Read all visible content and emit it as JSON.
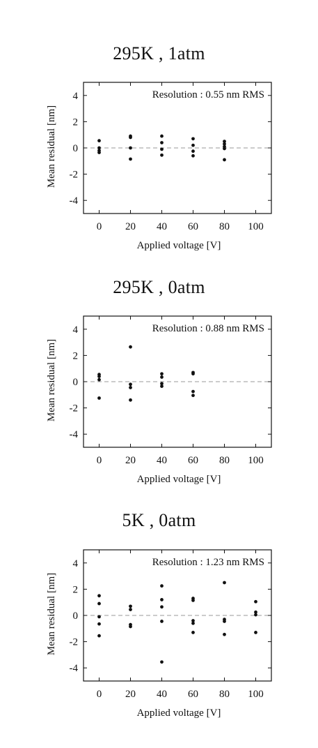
{
  "chart_data": [
    {
      "type": "scatter",
      "title": "295K , 1atm",
      "annotation": "Resolution : 0.55 nm RMS",
      "xlabel": "Applied voltage [V]",
      "ylabel": "Mean residual [nm]",
      "xticks": [
        0,
        20,
        40,
        60,
        80,
        100
      ],
      "yticks": [
        4,
        2,
        0,
        -2,
        -4
      ],
      "xlim": [
        -10,
        110
      ],
      "ylim": [
        -5,
        5
      ],
      "zero_line": "dashed",
      "points": [
        {
          "x": 0,
          "y": 0.55
        },
        {
          "x": 0,
          "y": 0.0
        },
        {
          "x": 0,
          "y": -0.2
        },
        {
          "x": 0,
          "y": -0.35
        },
        {
          "x": 20,
          "y": 0.9
        },
        {
          "x": 20,
          "y": 0.8
        },
        {
          "x": 20,
          "y": 0.0
        },
        {
          "x": 20,
          "y": -0.85
        },
        {
          "x": 40,
          "y": 0.9
        },
        {
          "x": 40,
          "y": 0.4
        },
        {
          "x": 40,
          "y": -0.1
        },
        {
          "x": 40,
          "y": -0.55
        },
        {
          "x": 60,
          "y": 0.7
        },
        {
          "x": 60,
          "y": 0.2
        },
        {
          "x": 60,
          "y": -0.25
        },
        {
          "x": 60,
          "y": -0.6
        },
        {
          "x": 80,
          "y": 0.5
        },
        {
          "x": 80,
          "y": 0.3
        },
        {
          "x": 80,
          "y": 0.1
        },
        {
          "x": 80,
          "y": -0.05
        },
        {
          "x": 80,
          "y": -0.9
        }
      ]
    },
    {
      "type": "scatter",
      "title": "295K , 0atm",
      "annotation": "Resolution : 0.88 nm RMS",
      "xlabel": "Applied voltage [V]",
      "ylabel": "Mean residual [nm]",
      "xticks": [
        0,
        20,
        40,
        60,
        80,
        100
      ],
      "yticks": [
        4,
        2,
        0,
        -2,
        -4
      ],
      "xlim": [
        -10,
        110
      ],
      "ylim": [
        -5,
        5
      ],
      "zero_line": "dashed",
      "points": [
        {
          "x": 0,
          "y": 0.55
        },
        {
          "x": 0,
          "y": 0.4
        },
        {
          "x": 0,
          "y": 0.15
        },
        {
          "x": 0,
          "y": -1.25
        },
        {
          "x": 20,
          "y": 2.65
        },
        {
          "x": 20,
          "y": -0.2
        },
        {
          "x": 20,
          "y": -0.45
        },
        {
          "x": 20,
          "y": -1.4
        },
        {
          "x": 40,
          "y": 0.6
        },
        {
          "x": 40,
          "y": 0.35
        },
        {
          "x": 40,
          "y": -0.15
        },
        {
          "x": 40,
          "y": -0.35
        },
        {
          "x": 60,
          "y": 0.7
        },
        {
          "x": 60,
          "y": 0.6
        },
        {
          "x": 60,
          "y": -0.75
        },
        {
          "x": 60,
          "y": -1.05
        }
      ]
    },
    {
      "type": "scatter",
      "title": "5K , 0atm",
      "annotation": "Resolution : 1.23 nm RMS",
      "xlabel": "Applied voltage [V]",
      "ylabel": "Mean residual [nm]",
      "xticks": [
        0,
        20,
        40,
        60,
        80,
        100
      ],
      "yticks": [
        4,
        2,
        0,
        -2,
        -4
      ],
      "xlim": [
        -10,
        110
      ],
      "ylim": [
        -5,
        5
      ],
      "zero_line": "dashed",
      "points": [
        {
          "x": 0,
          "y": 1.5
        },
        {
          "x": 0,
          "y": 0.9
        },
        {
          "x": 0,
          "y": -0.1
        },
        {
          "x": 0,
          "y": -0.65
        },
        {
          "x": 0,
          "y": -1.55
        },
        {
          "x": 20,
          "y": 0.7
        },
        {
          "x": 20,
          "y": 0.45
        },
        {
          "x": 20,
          "y": -0.7
        },
        {
          "x": 20,
          "y": -0.85
        },
        {
          "x": 40,
          "y": 2.25
        },
        {
          "x": 40,
          "y": 1.2
        },
        {
          "x": 40,
          "y": 0.65
        },
        {
          "x": 40,
          "y": -0.45
        },
        {
          "x": 40,
          "y": -3.55
        },
        {
          "x": 60,
          "y": 1.3
        },
        {
          "x": 60,
          "y": 1.15
        },
        {
          "x": 60,
          "y": -0.4
        },
        {
          "x": 60,
          "y": -0.6
        },
        {
          "x": 60,
          "y": -1.3
        },
        {
          "x": 80,
          "y": 2.5
        },
        {
          "x": 80,
          "y": -0.3
        },
        {
          "x": 80,
          "y": -0.45
        },
        {
          "x": 80,
          "y": -1.45
        },
        {
          "x": 100,
          "y": 1.05
        },
        {
          "x": 100,
          "y": 0.25
        },
        {
          "x": 100,
          "y": 0.05
        },
        {
          "x": 100,
          "y": -1.3
        }
      ]
    }
  ]
}
